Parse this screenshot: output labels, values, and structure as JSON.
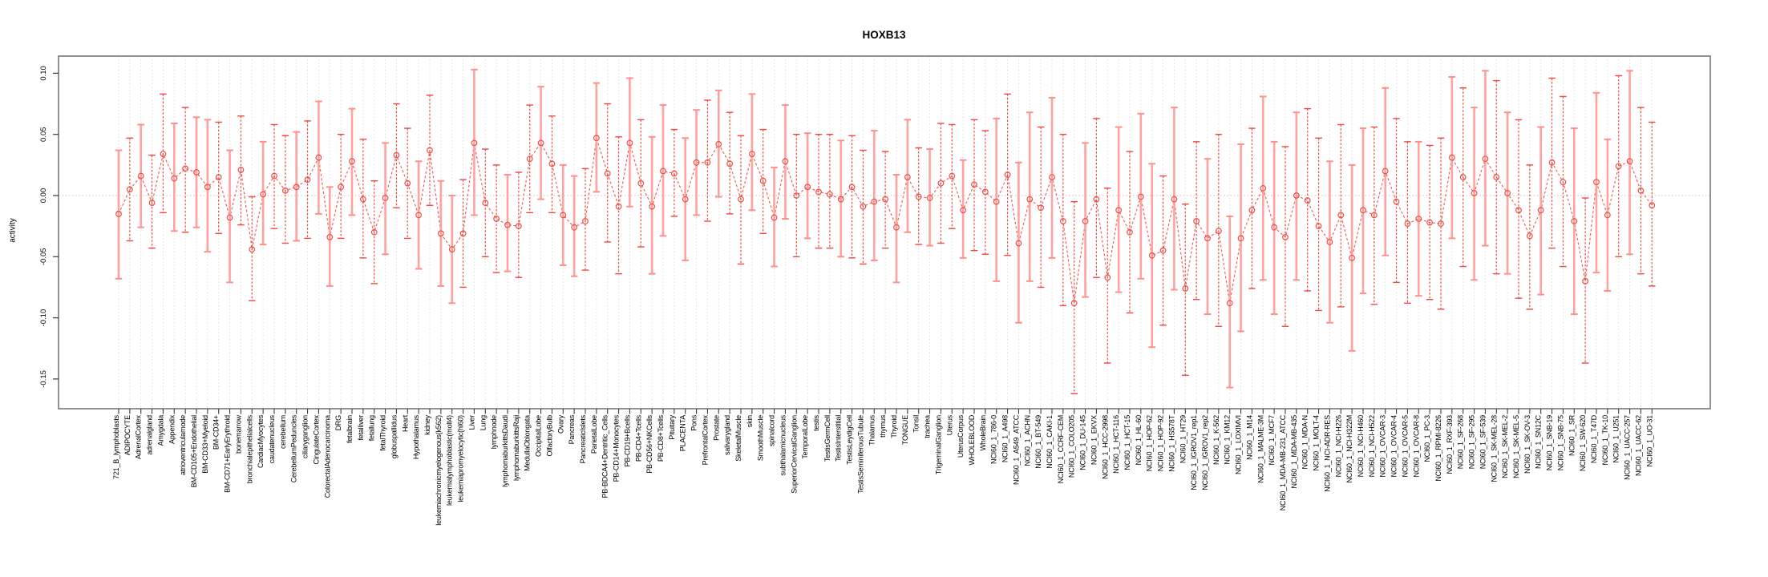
{
  "title": "HOXB13",
  "chart_data": {
    "type": "scatter",
    "subtype": "error-bar-plot",
    "title": "HOXB13",
    "xlabel": "",
    "ylabel": "activity",
    "ylim": [
      -0.18,
      0.115
    ],
    "yticks": [
      {
        "v": 0.1,
        "label": "0.10"
      },
      {
        "v": 0.05,
        "label": "0.05"
      },
      {
        "v": 0.0,
        "label": "0.00"
      },
      {
        "v": -0.05,
        "label": "-0.05"
      },
      {
        "v": -0.1,
        "label": "-0.10"
      },
      {
        "v": -0.15,
        "label": "-0.15"
      }
    ],
    "grid": "vertical dotted line per category; dotted horizontal line at y=0",
    "legend": "none",
    "marker": "open-circle",
    "categories": [
      "721_B_lymphoblasts",
      "ADIPOCYTE",
      "AdrenalCortex",
      "adrenalgland",
      "Amygdala",
      "Appendix",
      "atrioventricularnode",
      "BM-CD105+Endothelial",
      "BM-CD33+Myeloid",
      "BM-CD34+",
      "BM-CD71+EarlyErythroid",
      "bonemarrow",
      "bronchialepithelialcells",
      "CardiacMyocytes",
      "caudatenucleus",
      "cerebellum",
      "CerebellumPeduncles",
      "ciliaryganglion",
      "CingulateCortex",
      "ColorectalAdenocarcinoma",
      "DRG",
      "fetalbrain",
      "fetalliver",
      "fetallung",
      "fetalThyroid",
      "globuspallidus",
      "Heart",
      "Hypothalamus",
      "kidney",
      "leukemiachronicmyelogenous(k562)",
      "leukemialymphoblastic(molt4)",
      "leukemiapromyelocytic(hl60)",
      "Liver",
      "Lung",
      "lymphnode",
      "lymphomaburkittsDaudi",
      "lymphomaburkittsRaji",
      "MedullaOblongata",
      "OccipitalLobe",
      "OlfactoryBulb",
      "Ovary",
      "Pancreas",
      "PancreaticIslets",
      "ParietalLobe",
      "PB-BDCA4+Dentritic_Cells",
      "PB-CD14+Monocytes",
      "PB-CD19+Bcells",
      "PB-CD4+Tcells",
      "PB-CD56+NKCells",
      "PB-CD8+Tcells",
      "Pituitary",
      "PLACENTA",
      "Pons",
      "PrefrontalCortex",
      "Prostate",
      "salivarygland",
      "SkeletalMuscle",
      "skin",
      "SmoothMuscle",
      "spinalcord",
      "subthalamicnucleus",
      "SuperiorCervicalGanglion",
      "TemporalLobe",
      "testis",
      "TestisGermCell",
      "TestisInterstitial",
      "TestisLeydigCell",
      "TestisSeminiferousTubule",
      "Thalamus",
      "thymus",
      "Thyroid",
      "TONGUE",
      "Tonsil",
      "trachea",
      "TrigeminalGanglion",
      "Uterus",
      "UterusCorpus",
      "WHOLEBLOOD",
      "WholeBrain",
      "NCI60_1_786-0",
      "NCI60_1_A498",
      "NCI60_1_A549_ATCC",
      "NCI60_1_ACHN",
      "NCI60_1_BT-549",
      "NCI60_1_CAKI-1",
      "NCI60_1_CCRF-CEM",
      "NCI60_1_COLO205",
      "NCI60_1_DU-145",
      "NCI60_1_EKVX",
      "NCI60_1_HCC-2998",
      "NCI60_1_HCT-116",
      "NCI60_1_HCT-15",
      "NCI60_1_HL-60",
      "NCI60_1_HOP-62",
      "NCI60_1_HOP-92",
      "NCI60_1_HS578T",
      "NCI60_1_HT29",
      "NCI60_1_IGROV1_rep1",
      "NCI60_1_IGROV1_rep2",
      "NCI60_1_K-562",
      "NCI60_1_KM12",
      "NCI60_1_LOXIMVI",
      "NCI60_1_M14",
      "NCI60_1_MALME-3M",
      "NCI60_1_MCF7",
      "NCI60_1_MDA-MB-231_ATCC",
      "NCI60_1_MDA-MB-435",
      "NCI60_1_MDA-N",
      "NCI60_1_MOLT-4",
      "NCI60_1_NCI-ADR-RES",
      "NCI60_1_NCI-H226",
      "NCI60_1_NCI-H322M",
      "NCI60_1_NCI-H460",
      "NCI60_1_NCI-H522",
      "NCI60_1_OVCAR-3",
      "NCI60_1_OVCAR-4",
      "NCI60_1_OVCAR-5",
      "NCI60_1_OVCAR-8",
      "NCI60_1_PC-3",
      "NCI60_1_RPMI-8226",
      "NCI60_1_RXF-393",
      "NCI60_1_SF-268",
      "NCI60_1_SF-295",
      "NCI60_1_SF-539",
      "NCI60_1_SK-MEL-28",
      "NCI60_1_SK-MEL-2",
      "NCI60_1_SK-MEL-5",
      "NCI60_1_SK-OV-3",
      "NCI60_1_SN12C",
      "NCI60_1_SNB-19",
      "NCI60_1_SNB-75",
      "NCI60_1_SR",
      "NCI60_1_SW-620",
      "NCI60_1_T47D",
      "NCI60_1_TK-10",
      "NCI60_1_U251",
      "NCI60_1_UACC-257",
      "NCI60_1_UACC-62",
      "NCI60_1_UO-31"
    ],
    "series": [
      {
        "name": "activity",
        "values": [
          -0.015,
          0.005,
          0.016,
          -0.006,
          0.034,
          0.014,
          0.022,
          0.019,
          0.007,
          0.015,
          -0.018,
          0.021,
          -0.044,
          0.001,
          0.016,
          0.004,
          0.007,
          0.013,
          0.031,
          -0.034,
          0.007,
          0.028,
          -0.003,
          -0.03,
          -0.002,
          0.033,
          0.01,
          -0.016,
          0.037,
          -0.031,
          -0.044,
          -0.031,
          0.043,
          -0.006,
          -0.019,
          -0.024,
          -0.025,
          0.03,
          0.043,
          0.026,
          -0.016,
          -0.026,
          -0.021,
          0.047,
          0.018,
          -0.009,
          0.043,
          0.01,
          -0.009,
          0.02,
          0.018,
          -0.003,
          0.027,
          0.027,
          0.042,
          0.026,
          -0.003,
          0.034,
          0.012,
          -0.018,
          0.028,
          0.0,
          0.007,
          0.003,
          0.001,
          -0.003,
          0.007,
          -0.009,
          -0.005,
          -0.003,
          -0.026,
          0.015,
          -0.001,
          -0.002,
          0.01,
          0.016,
          -0.012,
          0.009,
          0.003,
          -0.005,
          0.017,
          -0.039,
          -0.003,
          -0.01,
          0.015,
          -0.021,
          -0.088,
          -0.021,
          -0.003,
          -0.067,
          -0.012,
          -0.03,
          -0.001,
          -0.049,
          -0.045,
          -0.003,
          -0.076,
          -0.021,
          -0.035,
          -0.029,
          -0.088,
          -0.035,
          -0.012,
          0.006,
          -0.026,
          -0.034,
          0.0,
          -0.004,
          -0.025,
          -0.038,
          -0.016,
          -0.051,
          -0.012,
          -0.016,
          0.02,
          -0.005,
          -0.023,
          -0.019,
          -0.022,
          -0.023,
          0.031,
          0.015,
          0.002,
          0.03,
          0.015,
          0.002,
          -0.012,
          -0.033,
          -0.012,
          0.027,
          0.011,
          -0.021,
          -0.07,
          0.011,
          -0.016,
          0.024,
          0.028,
          0.004,
          -0.008
        ]
      },
      {
        "name": "ci_upper",
        "values": [
          0.037,
          0.047,
          0.058,
          0.033,
          0.083,
          0.059,
          0.072,
          0.064,
          0.062,
          0.06,
          0.037,
          0.065,
          -0.001,
          0.044,
          0.058,
          0.049,
          0.052,
          0.061,
          0.077,
          0.007,
          0.05,
          0.071,
          0.046,
          0.012,
          0.043,
          0.075,
          0.055,
          0.028,
          0.082,
          0.012,
          0.0,
          0.013,
          0.103,
          0.038,
          0.025,
          0.017,
          0.019,
          0.074,
          0.089,
          0.065,
          0.025,
          0.016,
          0.022,
          0.092,
          0.075,
          0.048,
          0.096,
          0.062,
          0.048,
          0.074,
          0.054,
          0.047,
          0.07,
          0.078,
          0.086,
          0.068,
          0.049,
          0.083,
          0.054,
          0.023,
          0.074,
          0.05,
          0.051,
          0.05,
          0.05,
          0.045,
          0.049,
          0.037,
          0.053,
          0.036,
          0.017,
          0.062,
          0.039,
          0.038,
          0.059,
          0.058,
          0.029,
          0.062,
          0.053,
          0.063,
          0.083,
          0.027,
          0.068,
          0.056,
          0.08,
          0.05,
          -0.005,
          0.043,
          0.063,
          0.006,
          0.056,
          0.036,
          0.067,
          0.026,
          0.016,
          0.072,
          -0.007,
          0.044,
          0.03,
          0.05,
          -0.017,
          0.042,
          0.055,
          0.081,
          0.044,
          0.04,
          0.068,
          0.071,
          0.047,
          0.028,
          0.058,
          0.025,
          0.055,
          0.056,
          0.088,
          0.063,
          0.044,
          0.044,
          0.041,
          0.047,
          0.097,
          0.088,
          0.072,
          0.102,
          0.094,
          0.068,
          0.062,
          0.025,
          0.056,
          0.096,
          0.081,
          0.055,
          -0.002,
          0.084,
          0.046,
          0.098,
          0.102,
          0.072,
          0.06
        ]
      },
      {
        "name": "ci_lower",
        "values": [
          -0.068,
          -0.037,
          -0.026,
          -0.043,
          -0.014,
          -0.029,
          -0.03,
          -0.026,
          -0.046,
          -0.031,
          -0.071,
          -0.024,
          -0.086,
          -0.04,
          -0.027,
          -0.039,
          -0.037,
          -0.035,
          -0.015,
          -0.074,
          -0.035,
          -0.016,
          -0.051,
          -0.072,
          -0.048,
          -0.01,
          -0.035,
          -0.06,
          -0.008,
          -0.074,
          -0.088,
          -0.075,
          -0.016,
          -0.05,
          -0.063,
          -0.062,
          -0.067,
          -0.014,
          -0.003,
          -0.014,
          -0.057,
          -0.066,
          -0.061,
          0.003,
          -0.038,
          -0.064,
          -0.009,
          -0.042,
          -0.064,
          -0.033,
          -0.017,
          -0.053,
          -0.016,
          -0.021,
          -0.001,
          -0.015,
          -0.056,
          -0.012,
          -0.031,
          -0.058,
          -0.019,
          -0.05,
          -0.035,
          -0.043,
          -0.043,
          -0.05,
          -0.051,
          -0.056,
          -0.053,
          -0.043,
          -0.071,
          -0.03,
          -0.04,
          -0.041,
          -0.039,
          -0.027,
          -0.051,
          -0.045,
          -0.048,
          -0.07,
          -0.049,
          -0.104,
          -0.07,
          -0.075,
          -0.051,
          -0.09,
          -0.162,
          -0.083,
          -0.067,
          -0.137,
          -0.079,
          -0.096,
          -0.068,
          -0.124,
          -0.106,
          -0.077,
          -0.147,
          -0.085,
          -0.097,
          -0.107,
          -0.157,
          -0.111,
          -0.076,
          -0.069,
          -0.097,
          -0.107,
          -0.069,
          -0.078,
          -0.094,
          -0.104,
          -0.091,
          -0.127,
          -0.08,
          -0.089,
          -0.049,
          -0.071,
          -0.088,
          -0.082,
          -0.085,
          -0.093,
          -0.035,
          -0.058,
          -0.069,
          -0.041,
          -0.064,
          -0.064,
          -0.084,
          -0.093,
          -0.081,
          -0.043,
          -0.058,
          -0.097,
          -0.137,
          -0.063,
          -0.078,
          -0.05,
          -0.048,
          -0.064,
          -0.074
        ]
      }
    ]
  },
  "colors": {
    "bar_red": "#f0483f",
    "bar_pink": "#ffa2a0",
    "cap_pink": "#ff8f8d",
    "connect_line": "#f2544c",
    "marker": "#ef4d45",
    "gridline": "#dcdcdc",
    "zero_line": "#c4c4c4",
    "box": "#868686",
    "tick": "#3a3a3a",
    "text": "#000000"
  }
}
